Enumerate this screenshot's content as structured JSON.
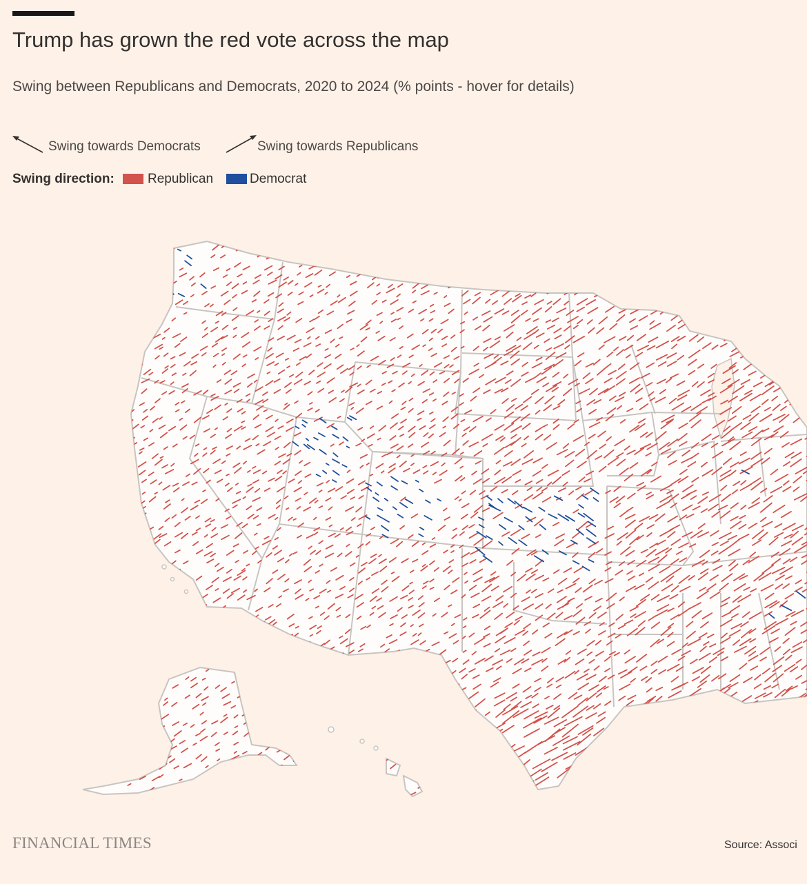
{
  "header": {
    "title": "Trump has grown the red vote across the map",
    "subtitle": "Swing between Republicans and Democrats, 2020 to 2024 (% points - hover for details)"
  },
  "legend": {
    "arrow_dem_label": "Swing towards Democrats",
    "arrow_rep_label": "Swing towards Republicans",
    "swing_direction_label": "Swing direction:",
    "republican_label": "Republican",
    "democrat_label": "Democrat"
  },
  "colors": {
    "republican": "#d2524c",
    "democrat": "#1f4f9e",
    "land": "#fffdfb",
    "border": "#c8c4c1",
    "background": "#fdf1e8"
  },
  "map": {
    "type": "county swing arrow map",
    "region": "United States",
    "dominant_swing": "Republican"
  },
  "footer": {
    "brand": "FINANCIAL TIMES",
    "source": "Source: Associ"
  }
}
